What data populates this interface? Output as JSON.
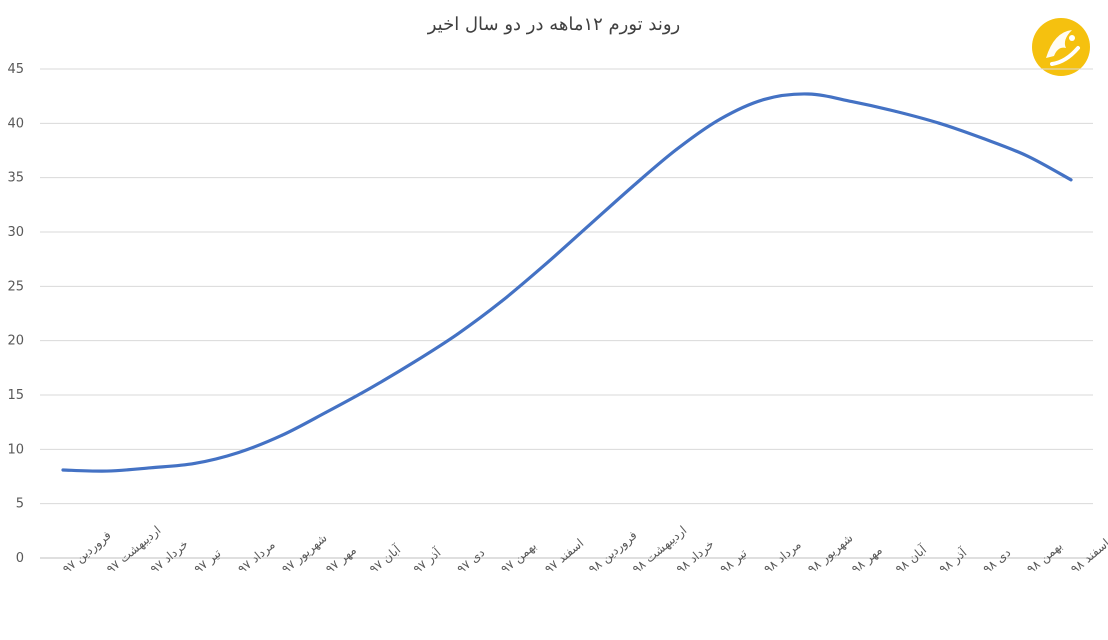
{
  "chart_data": {
    "type": "line",
    "title": "روند تورم ۱۲ماهه در دو سال اخیر",
    "xlabel": "",
    "ylabel": "",
    "ylim": [
      0,
      45
    ],
    "yticks": [
      0,
      5,
      10,
      15,
      20,
      25,
      30,
      35,
      40,
      45
    ],
    "grid": true,
    "legend": "none",
    "categories": [
      "فروردین ۹۷",
      "اردیبهشت ۹۷",
      "خرداد ۹۷",
      "تیر ۹۷",
      "مرداد ۹۷",
      "شهریور ۹۷",
      "مهر ۹۷",
      "آبان ۹۷",
      "آذر ۹۷",
      "دی ۹۷",
      "بهمن ۹۷",
      "اسفند ۹۷",
      "فروردین ۹۸",
      "اردیبهشت ۹۸",
      "خرداد ۹۸",
      "تیر ۹۸",
      "مرداد ۹۸",
      "شهریور ۹۸",
      "مهر ۹۸",
      "آبان ۹۸",
      "آذر ۹۸",
      "دی ۹۸",
      "بهمن ۹۸",
      "اسفند ۹۸"
    ],
    "series": [
      {
        "color": "#4472c4",
        "values": [
          8.1,
          8.0,
          8.3,
          8.7,
          9.7,
          11.3,
          13.4,
          15.6,
          18.0,
          20.6,
          23.6,
          27.0,
          30.6,
          34.2,
          37.6,
          40.4,
          42.2,
          42.7,
          42.0,
          41.1,
          40.0,
          38.6,
          37.0,
          34.8
        ]
      }
    ]
  },
  "logo": {
    "icon": "brand-logo-icon",
    "color": "#f5c10f"
  }
}
